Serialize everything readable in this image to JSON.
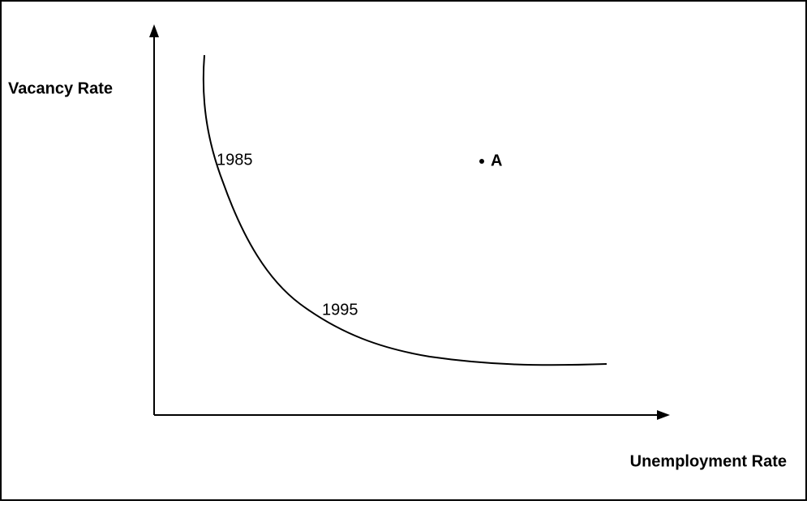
{
  "diagram": {
    "y_axis_label": "Vacancy Rate",
    "x_axis_label": "Unemployment Rate",
    "curve_labels": [
      "1985",
      "1995"
    ],
    "point_label": "A"
  }
}
